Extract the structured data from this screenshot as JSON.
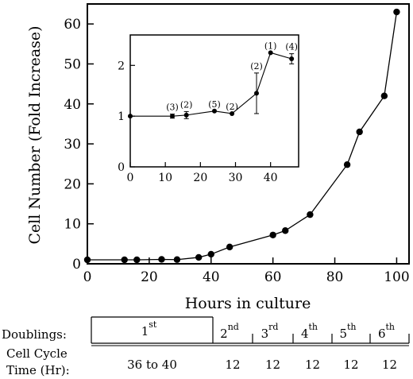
{
  "chart_data": [
    {
      "type": "line",
      "title": "",
      "xlabel": "Hours in culture",
      "ylabel": "Cell Number (Fold Increase)",
      "xlim": [
        0,
        104
      ],
      "ylim": [
        0,
        65
      ],
      "x_ticks": [
        0,
        20,
        40,
        60,
        80,
        100
      ],
      "y_ticks": [
        0,
        10,
        20,
        30,
        40,
        50,
        60
      ],
      "x_tick_labels": [
        "0",
        "20",
        "40",
        "60",
        "80",
        "100"
      ],
      "y_tick_labels": [
        "0",
        "10",
        "20",
        "30",
        "40",
        "50",
        "60"
      ],
      "grid": false,
      "series": [
        {
          "x": [
            0,
            12,
            16,
            24,
            29,
            36,
            40,
            46,
            60,
            64,
            72,
            84,
            88,
            96,
            100
          ],
          "y": [
            1,
            1,
            1,
            1.1,
            1.05,
            1.6,
            2.4,
            4.2,
            7.2,
            8.3,
            12.3,
            24.8,
            33,
            42,
            63
          ]
        }
      ]
    },
    {
      "type": "line",
      "title": "",
      "xlabel": "",
      "ylabel": "",
      "xlim": [
        0,
        48
      ],
      "ylim": [
        0,
        2.6
      ],
      "x_ticks": [
        0,
        10,
        20,
        30,
        40
      ],
      "y_ticks": [
        0,
        1,
        2
      ],
      "x_tick_labels": [
        "0",
        "10",
        "20",
        "30",
        "40"
      ],
      "y_tick_labels": [
        "0",
        "1",
        "2"
      ],
      "grid": false,
      "series": [
        {
          "x": [
            0,
            12,
            16,
            24,
            29,
            36,
            40,
            46
          ],
          "y": [
            1,
            1,
            1.02,
            1.1,
            1.05,
            1.45,
            2.25,
            2.13
          ],
          "error": [
            0,
            0.04,
            0.07,
            0,
            0,
            0.4,
            0,
            0.1
          ]
        }
      ],
      "annotations": [
        {
          "x": 12,
          "text": "(3)"
        },
        {
          "x": 16,
          "text": "(2)"
        },
        {
          "x": 24,
          "text": "(5)"
        },
        {
          "x": 29,
          "text": "(2)"
        },
        {
          "x": 36,
          "text": "(2)"
        },
        {
          "x": 40,
          "text": "(1)"
        },
        {
          "x": 46,
          "text": "(4)"
        }
      ]
    }
  ],
  "table": {
    "doublings_label": "Doublings:",
    "cycle_label_line1": "Cell Cycle",
    "cycle_label_line2": "Time (Hr):",
    "columns": [
      {
        "main": "1",
        "sup": "st",
        "time": "36 to 40"
      },
      {
        "main": "2",
        "sup": "nd",
        "time": "12"
      },
      {
        "main": "3",
        "sup": "rd",
        "time": "12"
      },
      {
        "main": "4",
        "sup": "th",
        "time": "12"
      },
      {
        "main": "5",
        "sup": "th",
        "time": "12"
      },
      {
        "main": "6",
        "sup": "th",
        "time": "12"
      }
    ]
  }
}
